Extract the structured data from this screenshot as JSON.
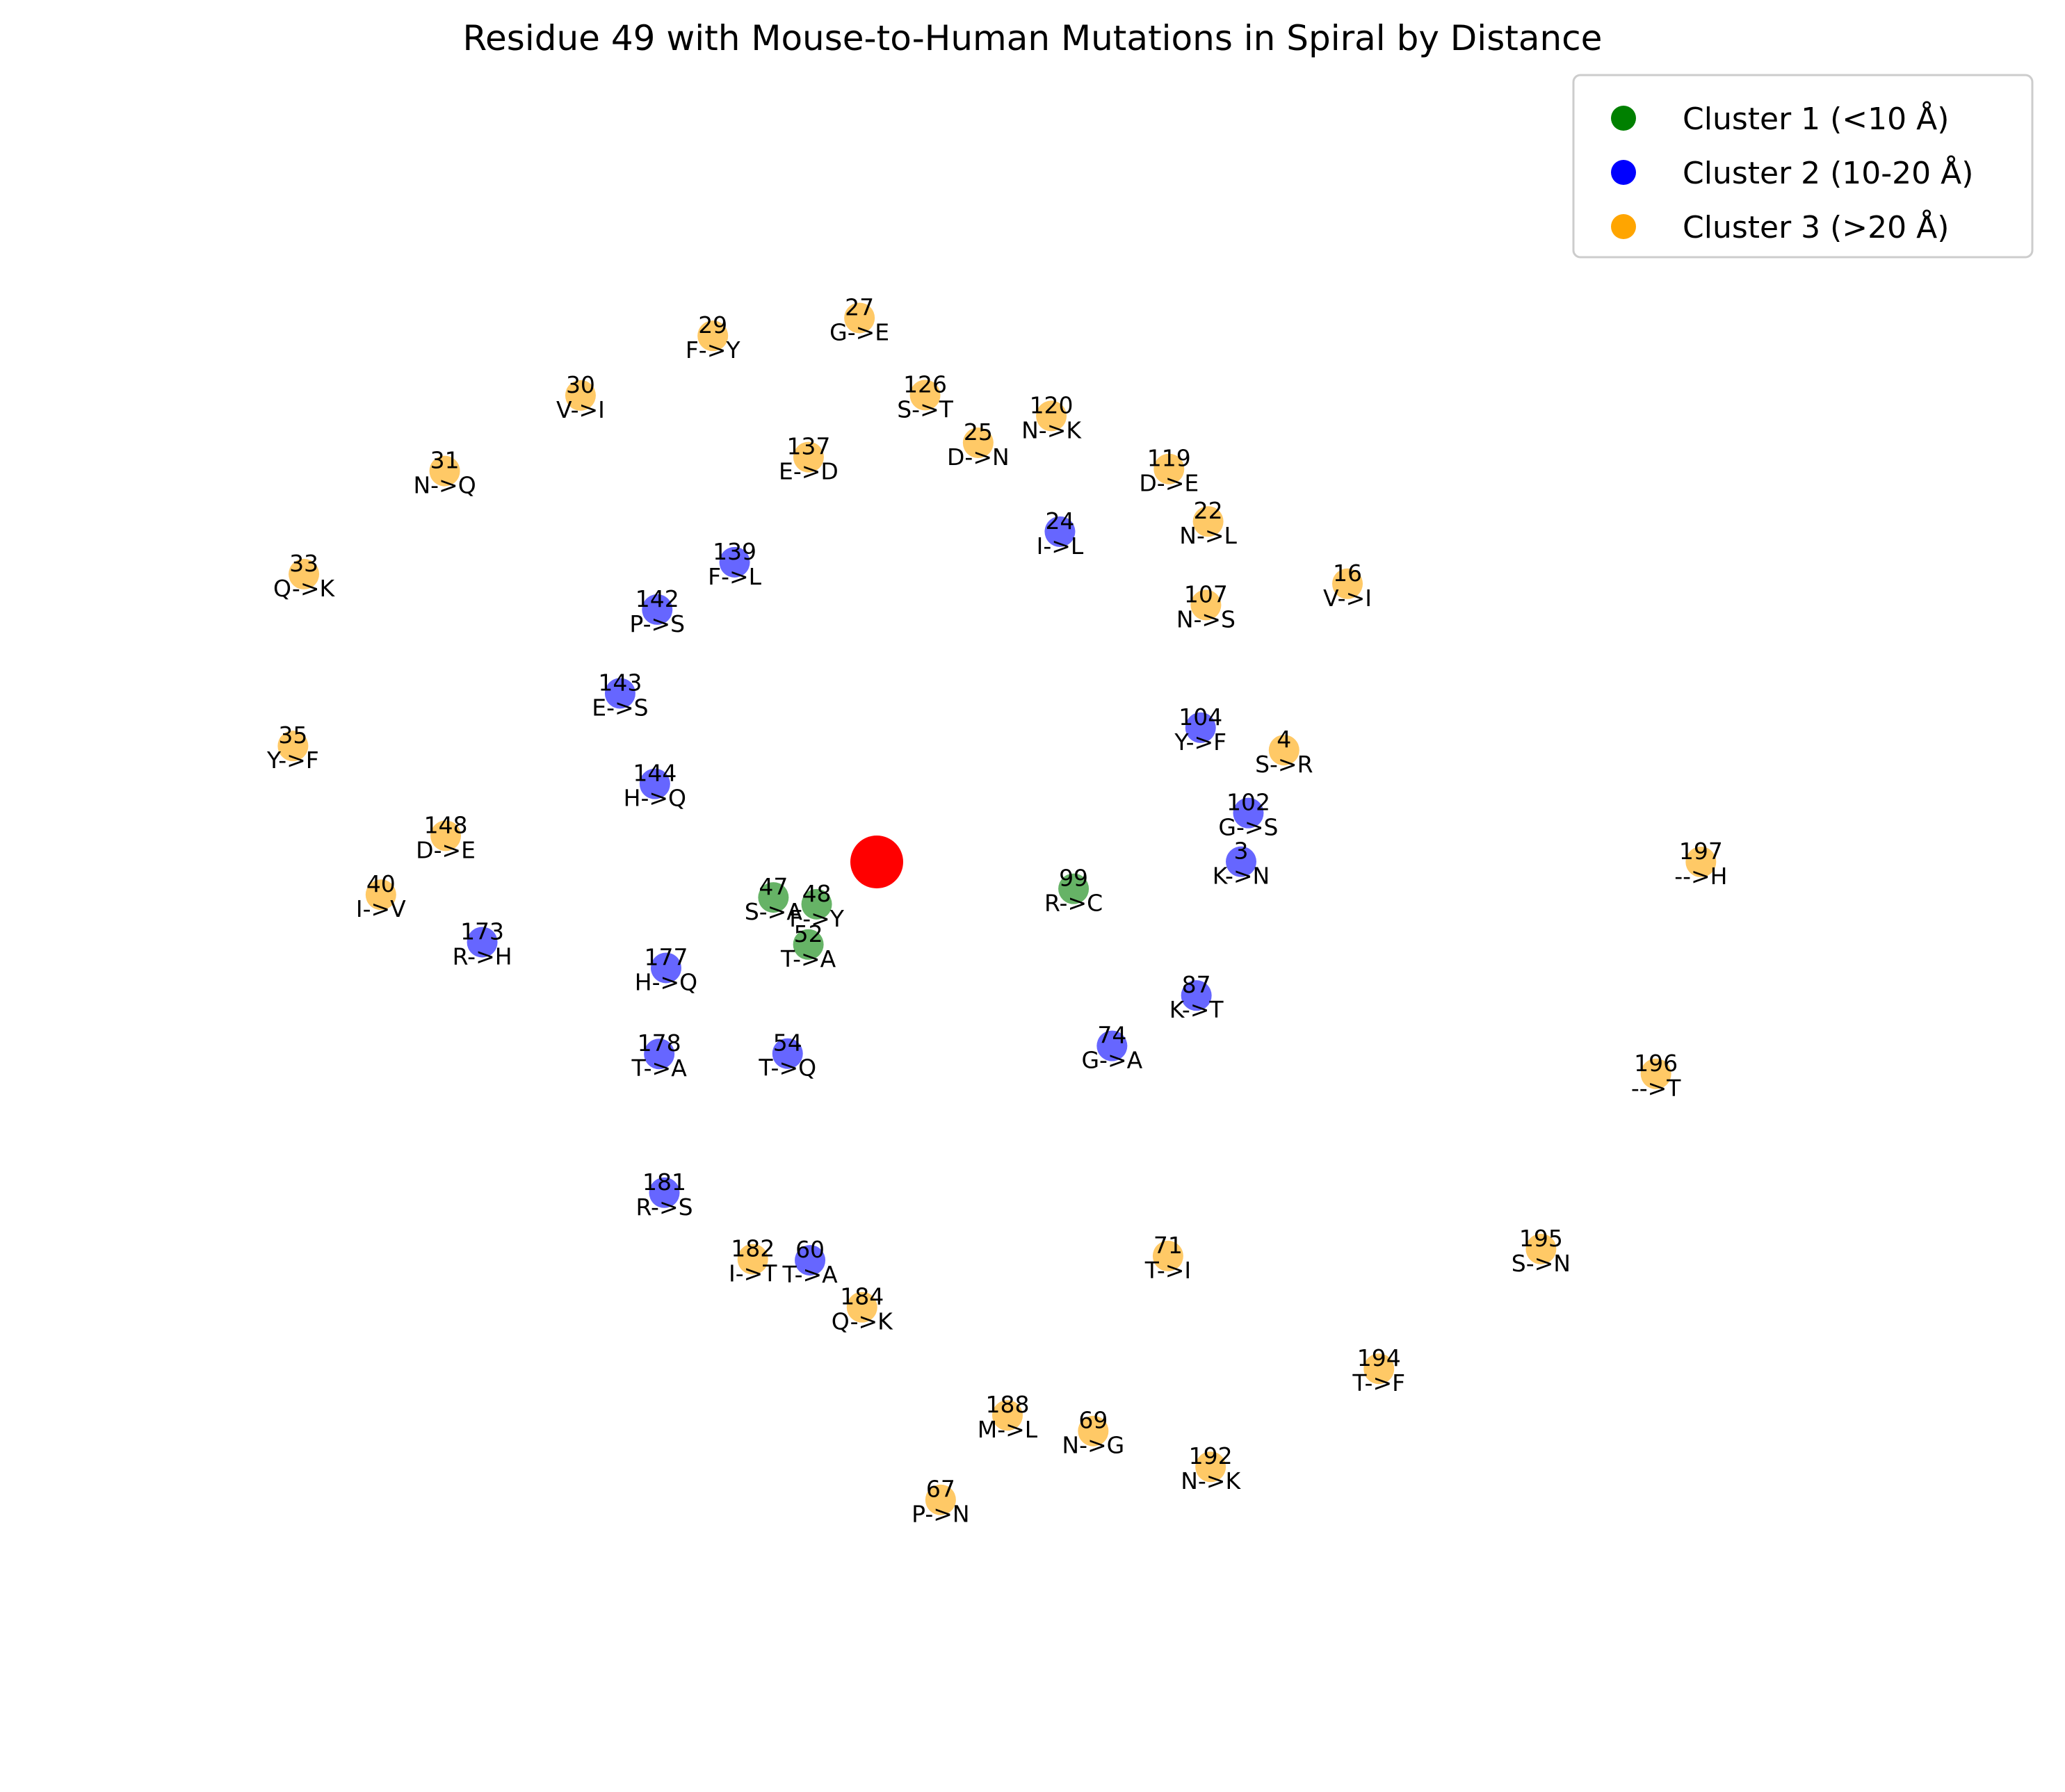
{
  "chart_data": {
    "type": "scatter",
    "title": "Residue 49 with Mouse-to-Human Mutations in Spiral by Distance",
    "center": {
      "x": 0,
      "y": 0,
      "color": "#ff0000"
    },
    "axes_visible": false,
    "legend_position": "top-right",
    "series": [
      {
        "name": "Cluster 1 (<10 Å)",
        "color": "#008000",
        "points": [
          {
            "residue": "47",
            "mutation": "S->A",
            "x": -13.93,
            "y": -4.79
          },
          {
            "residue": "48",
            "mutation": "F->Y",
            "x": -8.1,
            "y": -5.7
          },
          {
            "residue": "52",
            "mutation": "T->A",
            "x": -9.22,
            "y": -11.13
          },
          {
            "residue": "99",
            "mutation": "R->C",
            "x": 26.53,
            "y": -3.62
          }
        ]
      },
      {
        "name": "Cluster 2 (10-20 Å)",
        "color": "#0000ff",
        "points": [
          {
            "residue": "24",
            "mutation": "I->L",
            "x": 24.69,
            "y": 44.53
          },
          {
            "residue": "139",
            "mutation": "F->L",
            "x": -19.16,
            "y": 40.41
          },
          {
            "residue": "142",
            "mutation": "P->S",
            "x": -29.59,
            "y": 34.03
          },
          {
            "residue": "143",
            "mutation": "E->S",
            "x": -34.59,
            "y": 22.73
          },
          {
            "residue": "144",
            "mutation": "H->Q",
            "x": -29.91,
            "y": 10.53
          },
          {
            "residue": "173",
            "mutation": "R->H",
            "x": -53.18,
            "y": -10.82
          },
          {
            "residue": "177",
            "mutation": "H->Q",
            "x": -28.4,
            "y": -14.29
          },
          {
            "residue": "178",
            "mutation": "T->A",
            "x": -29.32,
            "y": -25.89
          },
          {
            "residue": "54",
            "mutation": "T->Q",
            "x": -12.02,
            "y": -25.84
          },
          {
            "residue": "181",
            "mutation": "R->S",
            "x": -28.63,
            "y": -44.59
          },
          {
            "residue": "60",
            "mutation": "T->A",
            "x": -8.99,
            "y": -53.71
          },
          {
            "residue": "74",
            "mutation": "G->A",
            "x": 31.71,
            "y": -24.8
          },
          {
            "residue": "87",
            "mutation": "K->T",
            "x": 43.08,
            "y": -18.01
          },
          {
            "residue": "3",
            "mutation": "K->N",
            "x": 49.11,
            "y": 0.03
          },
          {
            "residue": "102",
            "mutation": "G->S",
            "x": 50.09,
            "y": 6.59
          },
          {
            "residue": "104",
            "mutation": "Y->F",
            "x": 43.65,
            "y": 18.1
          }
        ]
      },
      {
        "name": "Cluster 3 (>20 Å)",
        "color": "#ffa500",
        "points": [
          {
            "residue": "27",
            "mutation": "G->E",
            "x": -2.33,
            "y": 73.34
          },
          {
            "residue": "29",
            "mutation": "F->Y",
            "x": -22.1,
            "y": 70.93
          },
          {
            "residue": "30",
            "mutation": "V->I",
            "x": -39.93,
            "y": 62.9
          },
          {
            "residue": "31",
            "mutation": "N->Q",
            "x": -58.24,
            "y": 52.71
          },
          {
            "residue": "126",
            "mutation": "S->T",
            "x": 6.52,
            "y": 62.94
          },
          {
            "residue": "137",
            "mutation": "E->D",
            "x": -9.19,
            "y": 54.58
          },
          {
            "residue": "25",
            "mutation": "D->N",
            "x": 13.67,
            "y": 56.51
          },
          {
            "residue": "120",
            "mutation": "N->K",
            "x": 23.53,
            "y": 60.13
          },
          {
            "residue": "119",
            "mutation": "D->E",
            "x": 39.39,
            "y": 52.98
          },
          {
            "residue": "22",
            "mutation": "N->L",
            "x": 44.67,
            "y": 45.9
          },
          {
            "residue": "33",
            "mutation": "Q->K",
            "x": -77.22,
            "y": 38.81
          },
          {
            "residue": "107",
            "mutation": "N->S",
            "x": 44.37,
            "y": 34.64
          },
          {
            "residue": "16",
            "mutation": "V->I",
            "x": 63.45,
            "y": 37.51
          },
          {
            "residue": "35",
            "mutation": "Y->F",
            "x": -78.69,
            "y": 15.64
          },
          {
            "residue": "4",
            "mutation": "S->R",
            "x": 54.9,
            "y": 15.07
          },
          {
            "residue": "148",
            "mutation": "D->E",
            "x": -58.1,
            "y": 3.53
          },
          {
            "residue": "197",
            "mutation": "-->H",
            "x": 111.09,
            "y": 0.0
          },
          {
            "residue": "40",
            "mutation": "I->V",
            "x": -66.84,
            "y": -4.42
          },
          {
            "residue": "196",
            "mutation": "-->T",
            "x": 105.03,
            "y": -28.57
          },
          {
            "residue": "71",
            "mutation": "T->I",
            "x": 39.26,
            "y": -53.13
          },
          {
            "residue": "195",
            "mutation": "S->N",
            "x": 89.54,
            "y": -52.19
          },
          {
            "residue": "182",
            "mutation": "I->T",
            "x": -16.71,
            "y": -53.57
          },
          {
            "residue": "184",
            "mutation": "Q->K",
            "x": -1.99,
            "y": -60.04
          },
          {
            "residue": "194",
            "mutation": "T->F",
            "x": 67.69,
            "y": -68.34
          },
          {
            "residue": "188",
            "mutation": "M->L",
            "x": 17.62,
            "y": -74.62
          },
          {
            "residue": "69",
            "mutation": "N->G",
            "x": 29.18,
            "y": -76.73
          },
          {
            "residue": "192",
            "mutation": "N->K",
            "x": 45.0,
            "y": -81.56
          },
          {
            "residue": "67",
            "mutation": "P->N",
            "x": 8.61,
            "y": -86.01
          }
        ]
      }
    ]
  }
}
